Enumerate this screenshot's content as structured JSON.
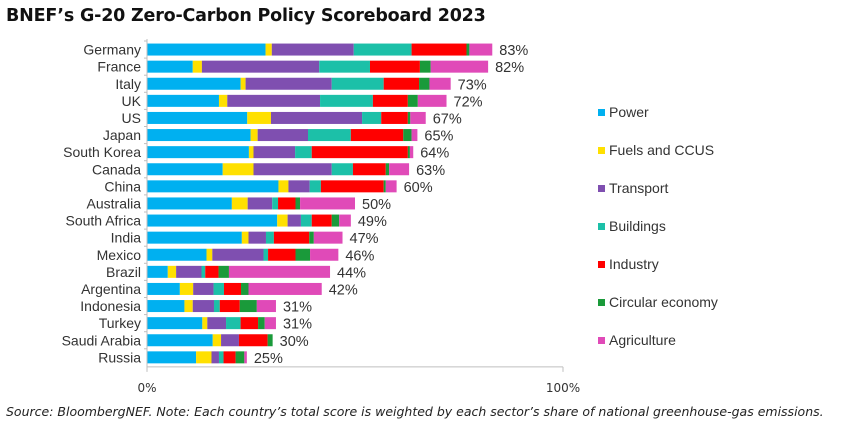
{
  "title": "BNEF’s G-20 Zero-Carbon Policy Scoreboard 2023",
  "source_note": "Source: BloombergNEF. Note: Each country’s total score is weighted by each sector’s share of national greenhouse-gas emissions.",
  "chart_data": {
    "type": "bar",
    "orientation": "horizontal",
    "stacked": true,
    "title": "BNEF’s G-20 Zero-Carbon Policy Scoreboard 2023",
    "xlabel": "",
    "ylabel": "",
    "xlim": [
      0,
      100
    ],
    "x_ticks": [
      "0%",
      "100%"
    ],
    "grid": false,
    "legend_position": "right",
    "categories": [
      "Germany",
      "France",
      "Italy",
      "UK",
      "US",
      "Japan",
      "South Korea",
      "Canada",
      "China",
      "Australia",
      "South Africa",
      "India",
      "Mexico",
      "Brazil",
      "Argentina",
      "Indonesia",
      "Turkey",
      "Saudi Arabia",
      "Russia"
    ],
    "totals": [
      83,
      82,
      73,
      72,
      67,
      65,
      64,
      63,
      60,
      50,
      49,
      47,
      46,
      44,
      42,
      31,
      31,
      30,
      25
    ],
    "total_labels": [
      "83%",
      "82%",
      "73%",
      "72%",
      "67%",
      "65%",
      "64%",
      "63%",
      "60%",
      "50%",
      "49%",
      "47%",
      "46%",
      "44%",
      "42%",
      "31%",
      "31%",
      "30%",
      "25%"
    ],
    "series": [
      {
        "name": "Power",
        "color": "#00B0F0",
        "values": [
          28.5,
          11,
          22.5,
          17.3,
          24.1,
          24.9,
          24.5,
          18.2,
          31.6,
          20.4,
          31.3,
          22.8,
          14.3,
          5,
          7.9,
          9,
          13.3,
          15.8,
          11.8
        ]
      },
      {
        "name": "Fuels and CCUS",
        "color": "#FFE000",
        "values": [
          1.5,
          2.2,
          1.2,
          2,
          5.7,
          1.7,
          1.1,
          7.4,
          2.4,
          3.8,
          2.5,
          1.6,
          1.4,
          2,
          3.2,
          2,
          1.2,
          2,
          3.7
        ]
      },
      {
        "name": "Transport",
        "color": "#7F4FB0",
        "values": [
          19.7,
          28.2,
          20.7,
          22.3,
          21.9,
          12.1,
          10,
          18.8,
          5.1,
          5.9,
          3.2,
          4.2,
          12.3,
          6.1,
          4.9,
          5.1,
          4.5,
          4.3,
          1.8
        ]
      },
      {
        "name": "Buildings",
        "color": "#1CC0A8",
        "values": [
          13.9,
          12.2,
          12.5,
          12.7,
          4.6,
          10.3,
          4,
          5.1,
          2.7,
          1.4,
          2.6,
          1.9,
          1.1,
          0.9,
          2.5,
          1.4,
          3.5,
          0,
          1.1
        ]
      },
      {
        "name": "Industry",
        "color": "#FF0000",
        "values": [
          13.2,
          12,
          8.5,
          8.4,
          6.4,
          12.6,
          23.1,
          7.9,
          15.1,
          4.2,
          4.8,
          8.5,
          6.6,
          3.2,
          4.1,
          4.8,
          4.2,
          6.9,
          2.9
        ]
      },
      {
        "name": "Circular economy",
        "color": "#1A9A3A",
        "values": [
          0.7,
          2.6,
          2.5,
          2.4,
          0.6,
          2,
          0.5,
          0.8,
          0.5,
          1.1,
          1.8,
          1.1,
          3.5,
          2.5,
          1.8,
          4.1,
          1.6,
          1.2,
          2.1
        ]
      },
      {
        "name": "Agriculture",
        "color": "#E04AB8",
        "values": [
          5.5,
          13.8,
          5.1,
          6.9,
          3.7,
          1.4,
          0.8,
          4.8,
          2.6,
          13.2,
          2.8,
          6.9,
          6.8,
          24.3,
          17.6,
          4.6,
          2.7,
          0,
          0.6
        ]
      }
    ]
  }
}
